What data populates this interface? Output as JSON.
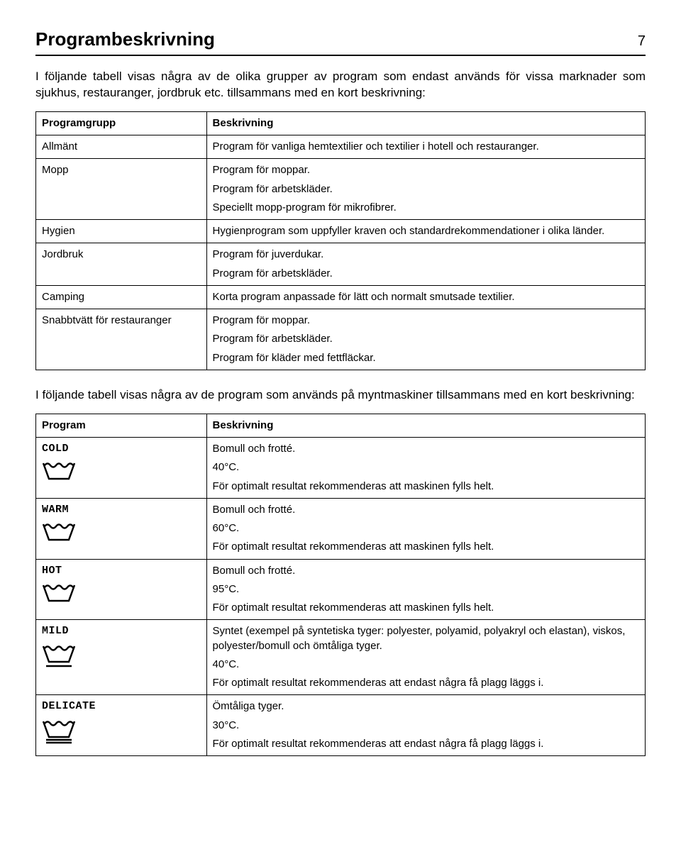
{
  "pageTitle": "Programbeskrivning",
  "pageNumber": "7",
  "intro1": "I följande tabell visas några av de olika grupper av program som endast används för vissa marknader som sjukhus, restauranger, jordbruk etc. tillsammans med en kort beskrivning:",
  "table1": {
    "headerLeft": "Programgrupp",
    "headerRight": "Beskrivning",
    "rows": [
      {
        "label": "Allmänt",
        "desc": [
          "Program för vanliga hemtextilier och textilier i hotell och restauranger."
        ]
      },
      {
        "label": "Mopp",
        "desc": [
          "Program för moppar.",
          "Program för arbetskläder.",
          "Speciellt mopp-program för mikrofibrer."
        ]
      },
      {
        "label": "Hygien",
        "desc": [
          "Hygienprogram som uppfyller kraven och standardrekommendationer i olika länder."
        ]
      },
      {
        "label": "Jordbruk",
        "desc": [
          "Program för juverdukar.",
          "Program för arbetskläder."
        ]
      },
      {
        "label": "Camping",
        "desc": [
          "Korta program anpassade för lätt och normalt smutsade textilier."
        ]
      },
      {
        "label": "Snabbtvätt för restauranger",
        "desc": [
          "Program för moppar.",
          "Program för arbetskläder.",
          "Program för kläder med fettfläckar."
        ]
      }
    ]
  },
  "intro2": "I följande tabell visas några av de program som används på myntmaskiner tillsammans med en kort beskrivning:",
  "table2": {
    "headerLeft": "Program",
    "headerRight": "Beskrivning",
    "rows": [
      {
        "label": "COLD",
        "icon": "basic",
        "desc": [
          "Bomull och frotté.",
          "40°C.",
          "För optimalt resultat rekommenderas att maskinen fylls helt."
        ]
      },
      {
        "label": "WARM",
        "icon": "basic",
        "desc": [
          "Bomull och frotté.",
          "60°C.",
          "För optimalt resultat rekommenderas att maskinen fylls helt."
        ]
      },
      {
        "label": "HOT",
        "icon": "basic",
        "desc": [
          "Bomull och frotté.",
          "95°C.",
          "För optimalt resultat rekommenderas att maskinen fylls helt."
        ]
      },
      {
        "label": "MILD",
        "icon": "single-underline",
        "desc": [
          "Syntet (exempel på syntetiska tyger: polyester, polyamid, polyakryl och elastan), viskos, polyester/bomull och ömtåliga tyger.",
          "40°C.",
          "För optimalt resultat rekommenderas att endast några få plagg läggs i."
        ]
      },
      {
        "label": "DELICATE",
        "icon": "double-underline",
        "desc": [
          "Ömtåliga tyger.",
          "30°C.",
          "För optimalt resultat rekommenderas att endast några få plagg läggs i."
        ]
      }
    ]
  },
  "style": {
    "textColor": "#000000",
    "bgColor": "#ffffff",
    "borderColor": "#000000",
    "titleFontSize": 26,
    "bodyFontSize": 17,
    "tableFontSize": 15,
    "monoFont": "Courier New"
  }
}
